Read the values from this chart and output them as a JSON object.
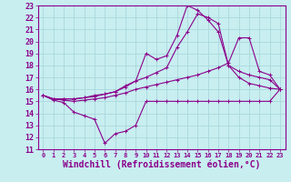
{
  "background_color": "#c8eef0",
  "grid_color": "#aad8dc",
  "line_color": "#8b008b",
  "xlim": [
    -0.5,
    23.5
  ],
  "ylim": [
    11,
    23
  ],
  "xticks": [
    0,
    1,
    2,
    3,
    4,
    5,
    6,
    7,
    8,
    9,
    10,
    11,
    12,
    13,
    14,
    15,
    16,
    17,
    18,
    19,
    20,
    21,
    22,
    23
  ],
  "yticks": [
    11,
    12,
    13,
    14,
    15,
    16,
    17,
    18,
    19,
    20,
    21,
    22,
    23
  ],
  "xlabel": "Windchill (Refroidissement éolien,°C)",
  "series": [
    [
      15.5,
      15.1,
      14.9,
      14.1,
      13.8,
      13.5,
      11.5,
      12.3,
      12.5,
      13.0,
      15.0,
      15.0,
      15.0,
      15.0,
      15.0,
      15.0,
      15.0,
      15.0,
      15.0,
      15.0,
      15.0,
      15.0,
      15.0,
      16.0
    ],
    [
      15.5,
      15.2,
      15.1,
      15.0,
      15.1,
      15.2,
      15.3,
      15.5,
      15.7,
      16.0,
      16.2,
      16.4,
      16.6,
      16.8,
      17.0,
      17.2,
      17.5,
      17.8,
      18.2,
      20.3,
      20.3,
      17.5,
      17.2,
      16.0
    ],
    [
      15.5,
      15.2,
      15.2,
      15.2,
      15.3,
      15.4,
      15.6,
      15.8,
      16.2,
      16.7,
      17.0,
      17.4,
      17.8,
      19.5,
      20.8,
      22.3,
      22.0,
      21.5,
      18.0,
      17.0,
      16.5,
      16.3,
      16.1,
      16.0
    ],
    [
      15.5,
      15.2,
      15.2,
      15.2,
      15.3,
      15.5,
      15.6,
      15.8,
      16.3,
      16.7,
      19.0,
      18.5,
      18.8,
      20.5,
      23.0,
      22.6,
      21.8,
      20.8,
      18.0,
      17.5,
      17.2,
      17.0,
      16.8,
      16.0
    ]
  ],
  "tick_fontsize": 6,
  "label_fontsize": 7,
  "marker": "+"
}
